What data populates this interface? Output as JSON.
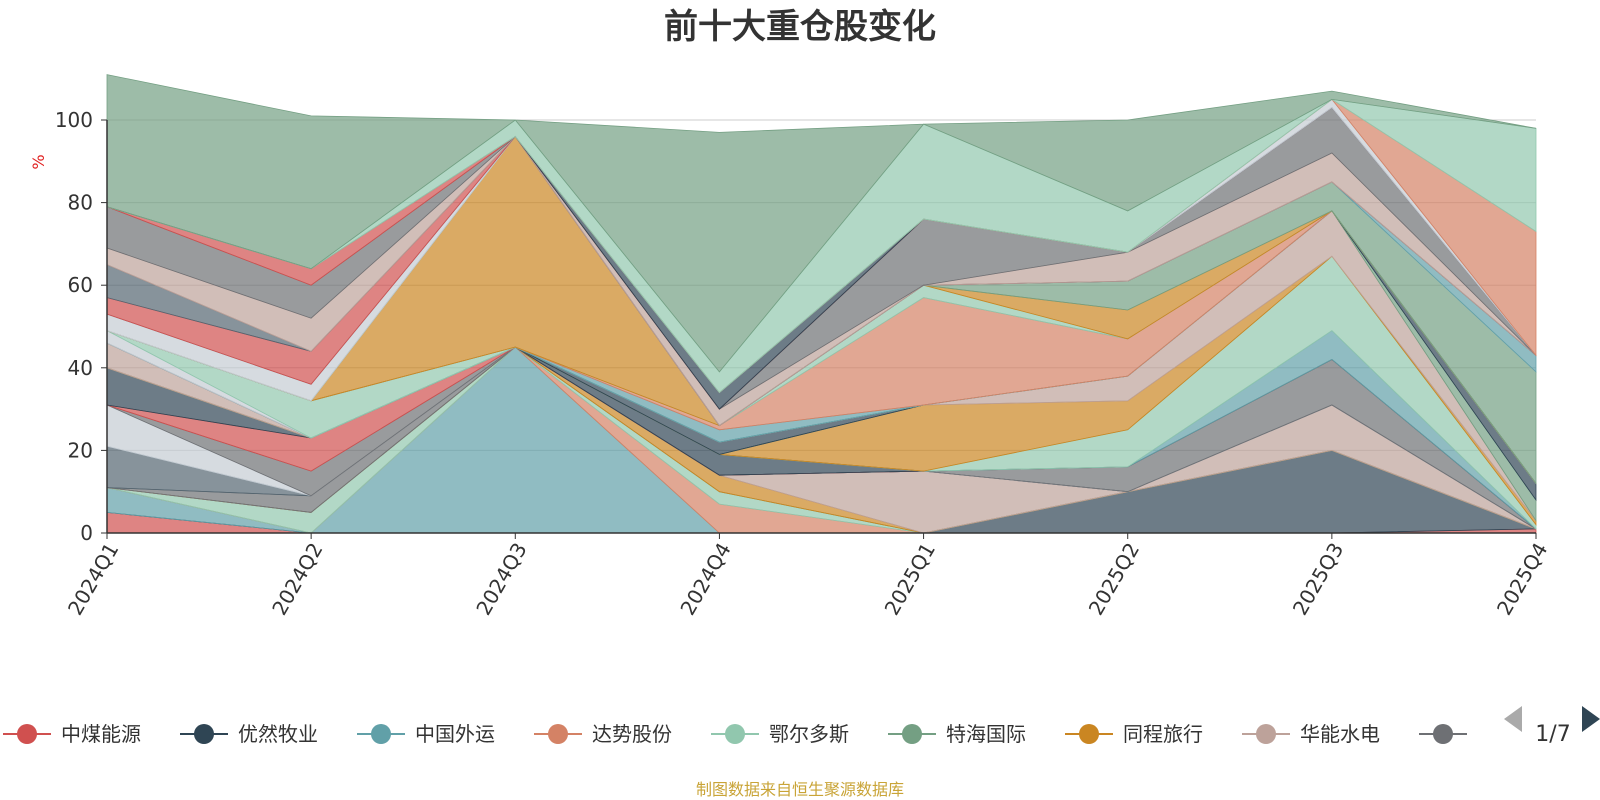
{
  "chart_data": {
    "type": "area",
    "title": "前十大重仓股变化",
    "ylabel": "%",
    "ylim": [
      0,
      100
    ],
    "yticks": [
      0,
      20,
      40,
      60,
      80,
      100
    ],
    "grid": true,
    "categories": [
      "2024Q1",
      "2024Q2",
      "2024Q3",
      "2024Q4",
      "2025Q1",
      "2025Q2",
      "2025Q3",
      "2025Q4"
    ],
    "series": [
      {
        "name": "中煤能源",
        "color": "#d0504f",
        "values": [
          5,
          0,
          0,
          0,
          0,
          0,
          0,
          1
        ]
      },
      {
        "name": "优然牧业",
        "color": "#2f4554",
        "values": [
          0,
          0,
          0,
          0,
          0,
          10,
          20,
          0
        ]
      },
      {
        "name": "中国外运",
        "color": "#61a0a8",
        "values": [
          6,
          0,
          45,
          0,
          0,
          0,
          0,
          0
        ]
      },
      {
        "name": "达势股份",
        "color": "#d48265",
        "values": [
          0,
          0,
          0,
          7,
          0,
          0,
          0,
          0
        ]
      },
      {
        "name": "鄂尔多斯",
        "color": "#91c7ae",
        "values": [
          0,
          5,
          0,
          3,
          0,
          0,
          0,
          0
        ]
      },
      {
        "name": "特海国际",
        "color": "#749f83",
        "values": [
          0,
          0,
          0,
          0,
          0,
          0,
          0,
          0
        ]
      },
      {
        "name": "同程旅行",
        "color": "#ca8622",
        "values": [
          0,
          0,
          0,
          4,
          0,
          0,
          0,
          0
        ]
      },
      {
        "name": "华能水电",
        "color": "#bda29a",
        "values": [
          0,
          0,
          0,
          0,
          15,
          0,
          11,
          0
        ]
      },
      {
        "name": "",
        "color": "#6e7074",
        "values": [
          0,
          4,
          0,
          0,
          0,
          0,
          0,
          0
        ]
      },
      {
        "name": "",
        "color": "#546570",
        "values": [
          10,
          0,
          0,
          0,
          0,
          0,
          0,
          0
        ]
      },
      {
        "name": "",
        "color": "#c4ccd3",
        "values": [
          10,
          0,
          0,
          0,
          0,
          0,
          0,
          0
        ]
      },
      {
        "name": "",
        "color": "#6e7074",
        "values": [
          0,
          6,
          0,
          0,
          0,
          6,
          11,
          0
        ]
      },
      {
        "name": "",
        "color": "#d0504f",
        "values": [
          0,
          8,
          0,
          0,
          0,
          0,
          0,
          0
        ]
      },
      {
        "name": "",
        "color": "#2f4554",
        "values": [
          9,
          0,
          0,
          5,
          0,
          0,
          0,
          0
        ]
      },
      {
        "name": "",
        "color": "#61a0a8",
        "values": [
          0,
          0,
          0,
          0,
          0,
          0,
          7,
          0
        ]
      },
      {
        "name": "",
        "color": "#91c7ae",
        "values": [
          0,
          0,
          0,
          0,
          0,
          9,
          18,
          1
        ]
      },
      {
        "name": "",
        "color": "#ca8622",
        "values": [
          0,
          0,
          0,
          0,
          16,
          7,
          0,
          1
        ]
      },
      {
        "name": "",
        "color": "#bda29a",
        "values": [
          6,
          0,
          0,
          0,
          0,
          6,
          11,
          0
        ]
      },
      {
        "name": "",
        "color": "#749f83",
        "values": [
          0,
          0,
          0,
          0,
          0,
          0,
          0,
          5
        ]
      },
      {
        "name": "",
        "color": "#2f4554",
        "values": [
          0,
          0,
          0,
          3,
          0,
          0,
          0,
          4
        ]
      },
      {
        "name": "",
        "color": "#c4ccd3",
        "values": [
          3,
          0,
          0,
          0,
          0,
          0,
          0,
          0
        ]
      },
      {
        "name": "",
        "color": "#91c7ae",
        "values": [
          0,
          9,
          0,
          0,
          0,
          0,
          0,
          0
        ]
      },
      {
        "name": "",
        "color": "#61a0a8",
        "values": [
          0,
          0,
          0,
          3,
          0,
          0,
          0,
          0
        ]
      },
      {
        "name": "",
        "color": "#d48265",
        "values": [
          0,
          0,
          0,
          1,
          26,
          9,
          0,
          0
        ]
      },
      {
        "name": "",
        "color": "#91c7ae",
        "values": [
          0,
          0,
          0,
          0,
          3,
          0,
          0,
          0
        ]
      },
      {
        "name": "",
        "color": "#ca8622",
        "values": [
          0,
          0,
          51,
          0,
          0,
          7,
          0,
          0
        ]
      },
      {
        "name": "",
        "color": "#749f83",
        "values": [
          0,
          0,
          0,
          0,
          0,
          7,
          7,
          27
        ]
      },
      {
        "name": "",
        "color": "#c4ccd3",
        "values": [
          4,
          4,
          0,
          0,
          0,
          0,
          0,
          0
        ]
      },
      {
        "name": "",
        "color": "#61a0a8",
        "values": [
          0,
          0,
          0,
          0,
          0,
          0,
          0,
          4
        ]
      },
      {
        "name": "",
        "color": "#d0504f",
        "values": [
          4,
          8,
          0,
          0,
          0,
          0,
          0,
          0
        ]
      },
      {
        "name": "",
        "color": "#546570",
        "values": [
          8,
          0,
          0,
          0,
          0,
          0,
          0,
          0
        ]
      },
      {
        "name": "",
        "color": "#bda29a",
        "values": [
          4,
          8,
          0,
          4,
          0,
          7,
          7,
          0
        ]
      },
      {
        "name": "",
        "color": "#6e7074",
        "values": [
          10,
          8,
          0,
          0,
          16,
          0,
          11,
          0
        ]
      },
      {
        "name": "",
        "color": "#d0504f",
        "values": [
          0,
          4,
          0,
          0,
          0,
          0,
          0,
          0
        ]
      },
      {
        "name": "",
        "color": "#2f4554",
        "values": [
          0,
          0,
          0,
          4,
          0,
          0,
          0,
          0
        ]
      },
      {
        "name": "",
        "color": "#c4ccd3",
        "values": [
          0,
          0,
          0,
          0,
          0,
          0,
          2,
          0
        ]
      },
      {
        "name": "",
        "color": "#d48265",
        "values": [
          0,
          0,
          0,
          0,
          0,
          0,
          0,
          30
        ]
      },
      {
        "name": "",
        "color": "#91c7ae",
        "values": [
          0,
          0,
          4,
          5,
          23,
          10,
          0,
          25
        ]
      },
      {
        "name": "",
        "color": "#749f83",
        "values": [
          32,
          37,
          0,
          58,
          0,
          22,
          2,
          0
        ]
      }
    ],
    "legend": {
      "position": "bottom",
      "visible_items": [
        {
          "name": "中煤能源",
          "color": "#d0504f"
        },
        {
          "name": "优然牧业",
          "color": "#2f4554"
        },
        {
          "name": "中国外运",
          "color": "#61a0a8"
        },
        {
          "name": "达势股份",
          "color": "#d48265"
        },
        {
          "name": "鄂尔多斯",
          "color": "#91c7ae"
        },
        {
          "name": "特海国际",
          "color": "#749f83"
        },
        {
          "name": "同程旅行",
          "color": "#ca8622"
        },
        {
          "name": "华能水电",
          "color": "#bda29a"
        },
        {
          "name": "",
          "color": "#6e7074"
        }
      ],
      "page": "1/7"
    }
  },
  "source_note": "制图数据来自恒生聚源数据库"
}
